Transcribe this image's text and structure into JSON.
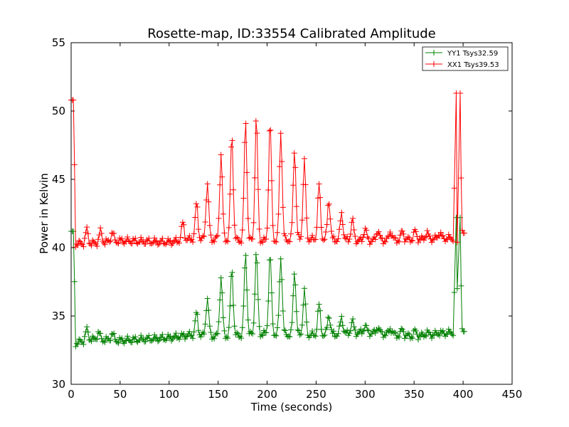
{
  "chart_data": {
    "type": "line",
    "title": "Rosette-map, ID:33554 Calibrated Amplitude",
    "xlabel": "Time (seconds)",
    "ylabel": "Power in Kelvin",
    "xlim": [
      0,
      450
    ],
    "ylim": [
      30,
      55
    ],
    "xticks": [
      "0",
      "50",
      "100",
      "150",
      "200",
      "250",
      "300",
      "350",
      "400",
      "450"
    ],
    "yticks": [
      "30",
      "35",
      "40",
      "45",
      "50",
      "55"
    ],
    "grid": false,
    "legend_position": "top-right",
    "marker": "plus",
    "series": [
      {
        "name": "YY1 Tsys32.59",
        "color": "#008000",
        "baseline": [
          [
            0,
            41.2
          ],
          [
            3,
            41.2
          ],
          [
            4,
            33.0
          ],
          [
            20,
            33.3
          ],
          [
            50,
            33.2
          ],
          [
            100,
            33.4
          ],
          [
            120,
            33.6
          ],
          [
            150,
            33.5
          ],
          [
            180,
            33.6
          ],
          [
            200,
            33.7
          ],
          [
            230,
            33.6
          ],
          [
            260,
            33.6
          ],
          [
            300,
            33.8
          ],
          [
            350,
            33.5
          ],
          [
            390,
            33.8
          ],
          [
            393,
            42.2
          ],
          [
            398,
            33.8
          ],
          [
            402,
            33.8
          ]
        ],
        "peaks": [
          [
            16,
            34.0
          ],
          [
            28,
            33.8
          ],
          [
            42,
            33.7
          ],
          [
            128,
            35.2
          ],
          [
            139,
            36.3
          ],
          [
            153,
            37.8
          ],
          [
            164,
            38.4
          ],
          [
            178,
            39.5
          ],
          [
            189,
            39.6
          ],
          [
            203,
            39.5
          ],
          [
            214,
            39.3
          ],
          [
            228,
            38.3
          ],
          [
            238,
            36.8
          ],
          [
            253,
            35.8
          ],
          [
            263,
            35.1
          ],
          [
            276,
            34.9
          ],
          [
            287,
            34.6
          ],
          [
            300,
            34.3
          ],
          [
            313,
            34.2
          ],
          [
            326,
            34.1
          ],
          [
            338,
            34.0
          ],
          [
            351,
            33.9
          ],
          [
            363,
            33.8
          ],
          [
            376,
            33.8
          ]
        ],
        "spikes": [
          [
            393,
            42.2
          ],
          [
            394,
            37.0
          ],
          [
            397,
            42.2
          ],
          [
            398,
            37.2
          ]
        ]
      },
      {
        "name": "XX1 Tsys39.53",
        "color": "#ff0000",
        "baseline": [
          [
            0,
            50.8
          ],
          [
            3,
            50.8
          ],
          [
            4,
            40.3
          ],
          [
            20,
            40.3
          ],
          [
            50,
            40.5
          ],
          [
            100,
            40.4
          ],
          [
            120,
            40.6
          ],
          [
            150,
            40.6
          ],
          [
            180,
            40.5
          ],
          [
            200,
            40.5
          ],
          [
            230,
            40.6
          ],
          [
            260,
            40.6
          ],
          [
            300,
            40.5
          ],
          [
            350,
            40.6
          ],
          [
            390,
            40.7
          ],
          [
            393,
            51.3
          ],
          [
            398,
            41.0
          ],
          [
            402,
            41.0
          ]
        ],
        "peaks": [
          [
            16,
            41.3
          ],
          [
            30,
            41.2
          ],
          [
            42,
            41.1
          ],
          [
            114,
            41.8
          ],
          [
            128,
            43.2
          ],
          [
            139,
            44.7
          ],
          [
            153,
            46.8
          ],
          [
            164,
            48.2
          ],
          [
            178,
            49.2
          ],
          [
            189,
            49.5
          ],
          [
            203,
            49.2
          ],
          [
            214,
            48.5
          ],
          [
            228,
            47.2
          ],
          [
            238,
            46.3
          ],
          [
            253,
            44.6
          ],
          [
            263,
            43.5
          ],
          [
            276,
            42.5
          ],
          [
            287,
            42.0
          ],
          [
            300,
            41.4
          ],
          [
            313,
            41.3
          ],
          [
            326,
            41.2
          ],
          [
            338,
            41.2
          ],
          [
            351,
            41.2
          ],
          [
            363,
            41.1
          ],
          [
            376,
            41.1
          ]
        ],
        "spikes": [
          [
            393,
            51.3
          ],
          [
            394,
            40.4
          ],
          [
            397,
            51.3
          ],
          [
            398,
            45.1
          ]
        ]
      }
    ]
  }
}
